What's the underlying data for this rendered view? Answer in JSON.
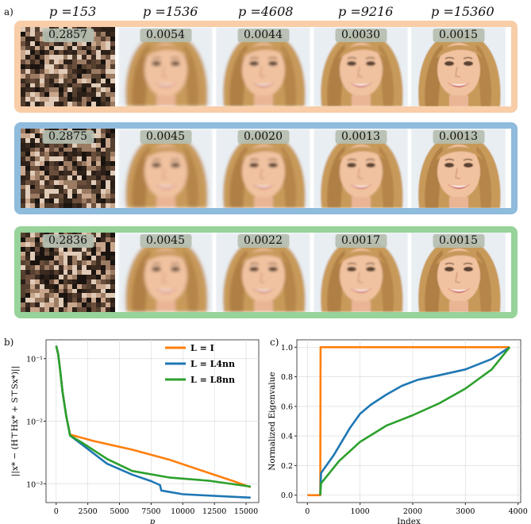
{
  "panel_labels": {
    "a": "a)",
    "b": "b)",
    "c": "c)"
  },
  "columns": [
    "p =153",
    "p =1536",
    "p =4608",
    "p =9216",
    "p =15360"
  ],
  "rows": [
    {
      "frame_color": "#f8cda8",
      "values": [
        "0.2857",
        "0.0054",
        "0.0044",
        "0.0030",
        "0.0015"
      ]
    },
    {
      "frame_color": "#8fbbdc",
      "values": [
        "0.2875",
        "0.0045",
        "0.0020",
        "0.0013",
        "0.0013"
      ]
    },
    {
      "frame_color": "#97d39a",
      "values": [
        "0.2836",
        "0.0045",
        "0.0022",
        "0.0017",
        "0.0015"
      ]
    }
  ],
  "chart_data": [
    {
      "type": "line",
      "panel": "b",
      "xlabel": "p",
      "ylabel": "||x* − (H⊤Hx* + S⊤Sx*)||",
      "y_scale": "log",
      "xlim": [
        -800,
        16000
      ],
      "ylim": [
        0.0005,
        0.2
      ],
      "x_ticks": [
        "0",
        "2500",
        "5000",
        "7500",
        "10000",
        "12500",
        "15000"
      ],
      "y_ticks": [
        "10⁻¹",
        "10⁻²",
        "10⁻³"
      ],
      "grid": true,
      "legend": "top-right",
      "series": [
        {
          "name": "L = I",
          "color": "#ff7f0e",
          "x": [
            0,
            150,
            300,
            500,
            800,
            1100,
            3000,
            6000,
            9000,
            12000,
            14000,
            15360
          ],
          "y": [
            0.16,
            0.12,
            0.07,
            0.03,
            0.012,
            0.0061,
            0.0048,
            0.0035,
            0.0024,
            0.0015,
            0.0011,
            0.00088
          ]
        },
        {
          "name": "L = L4nn",
          "color": "#1f77b4",
          "x": [
            0,
            150,
            300,
            500,
            800,
            1100,
            2000,
            4000,
            6000,
            7500,
            8200,
            8300,
            10000,
            12500,
            15360
          ],
          "y": [
            0.16,
            0.12,
            0.07,
            0.03,
            0.012,
            0.0059,
            0.0043,
            0.0021,
            0.0014,
            0.0011,
            0.00095,
            0.00078,
            0.00068,
            0.00064,
            0.0006
          ]
        },
        {
          "name": "L = L8nn",
          "color": "#2ca02c",
          "x": [
            0,
            150,
            300,
            500,
            800,
            1100,
            2000,
            4000,
            6000,
            9000,
            12000,
            15360
          ],
          "y": [
            0.16,
            0.12,
            0.07,
            0.03,
            0.012,
            0.0059,
            0.0046,
            0.0025,
            0.0016,
            0.00125,
            0.00112,
            0.0009
          ]
        }
      ]
    },
    {
      "type": "line",
      "panel": "c",
      "xlabel": "Index",
      "ylabel": "Normalized Eigenvalue",
      "xlim": [
        -200,
        4050
      ],
      "ylim": [
        -0.05,
        1.05
      ],
      "x_ticks": [
        "0",
        "1000",
        "2000",
        "3000",
        "4000"
      ],
      "y_ticks": [
        "0.0",
        "0.2",
        "0.4",
        "0.6",
        "0.8",
        "1.0"
      ],
      "grid": true,
      "series": [
        {
          "color": "#ff7f0e",
          "x": [
            0,
            245,
            250,
            3840
          ],
          "y": [
            0,
            0,
            1.0,
            1.0
          ]
        },
        {
          "color": "#1f77b4",
          "x": [
            245,
            260,
            500,
            800,
            1000,
            1200,
            1500,
            1800,
            2100,
            2500,
            3000,
            3500,
            3840
          ],
          "y": [
            0.0,
            0.15,
            0.27,
            0.45,
            0.55,
            0.61,
            0.68,
            0.74,
            0.78,
            0.81,
            0.85,
            0.92,
            1.0
          ]
        },
        {
          "color": "#2ca02c",
          "x": [
            245,
            260,
            600,
            1000,
            1500,
            2000,
            2500,
            3000,
            3500,
            3840
          ],
          "y": [
            0.0,
            0.08,
            0.23,
            0.36,
            0.47,
            0.54,
            0.62,
            0.72,
            0.85,
            1.0
          ]
        }
      ]
    }
  ]
}
